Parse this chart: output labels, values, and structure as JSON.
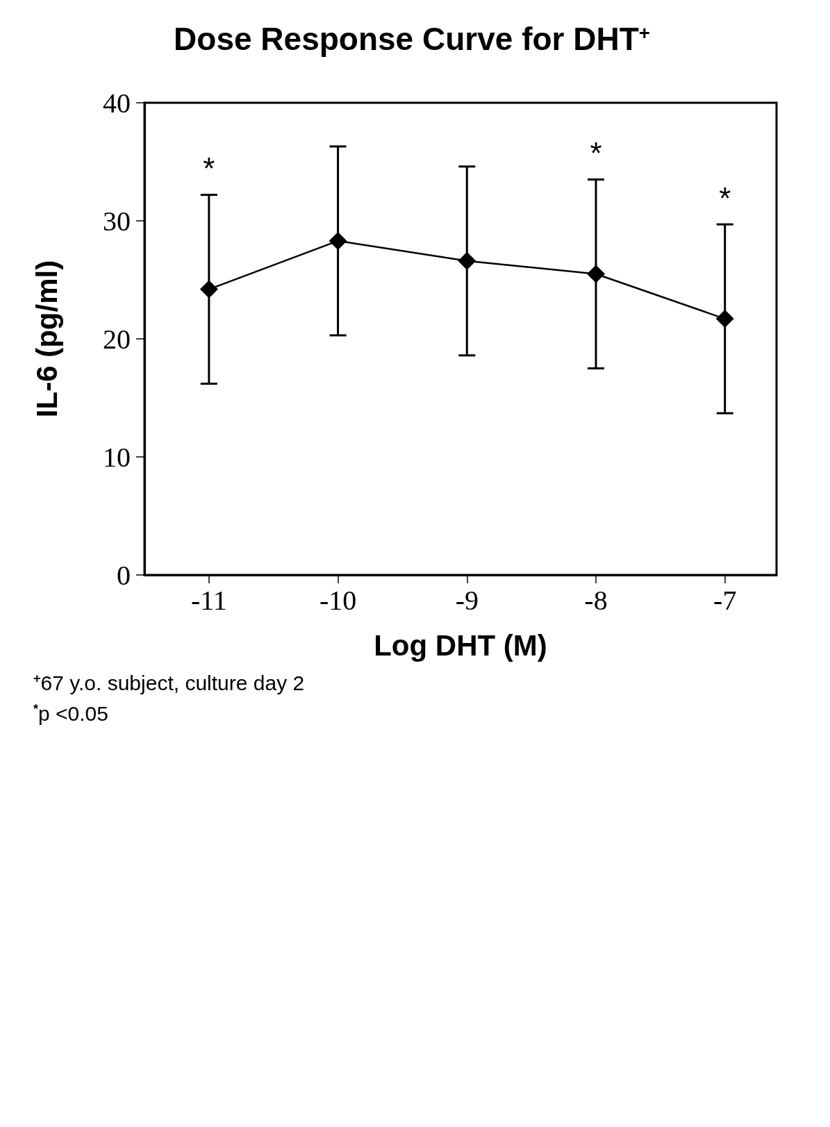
{
  "chart_data": {
    "type": "line",
    "title": "Dose Response Curve for DHT$^{+}$",
    "xlabel": "Log DHT (M)",
    "ylabel": "IL-6 (pg/ml)",
    "x": [
      -11,
      -10,
      -9,
      -8,
      -7
    ],
    "series": [
      {
        "color": "#000000",
        "values": [
          24.2,
          28.3,
          26.6,
          25.5,
          21.7
        ],
        "errors": [
          8,
          8,
          8,
          8,
          8
        ]
      }
    ],
    "xlim": [
      -11.5,
      -6.6
    ],
    "xticks": [
      -11,
      -10,
      -9,
      -8,
      -7
    ],
    "ylim": [
      0,
      40
    ],
    "yticks": [
      0,
      10,
      20,
      30,
      40
    ],
    "grid": false,
    "marker": "diamond",
    "line_style": "solid",
    "annotations": [
      {
        "text": "*",
        "x": -11,
        "y": 32.2
      },
      {
        "text": "*",
        "x": -8,
        "y": 33.5
      },
      {
        "text": "*",
        "x": -7,
        "y": 29.7
      },
      "$^{+}$67 y.o. subject, culture day 2",
      "$^{*}$p <0.05"
    ]
  }
}
